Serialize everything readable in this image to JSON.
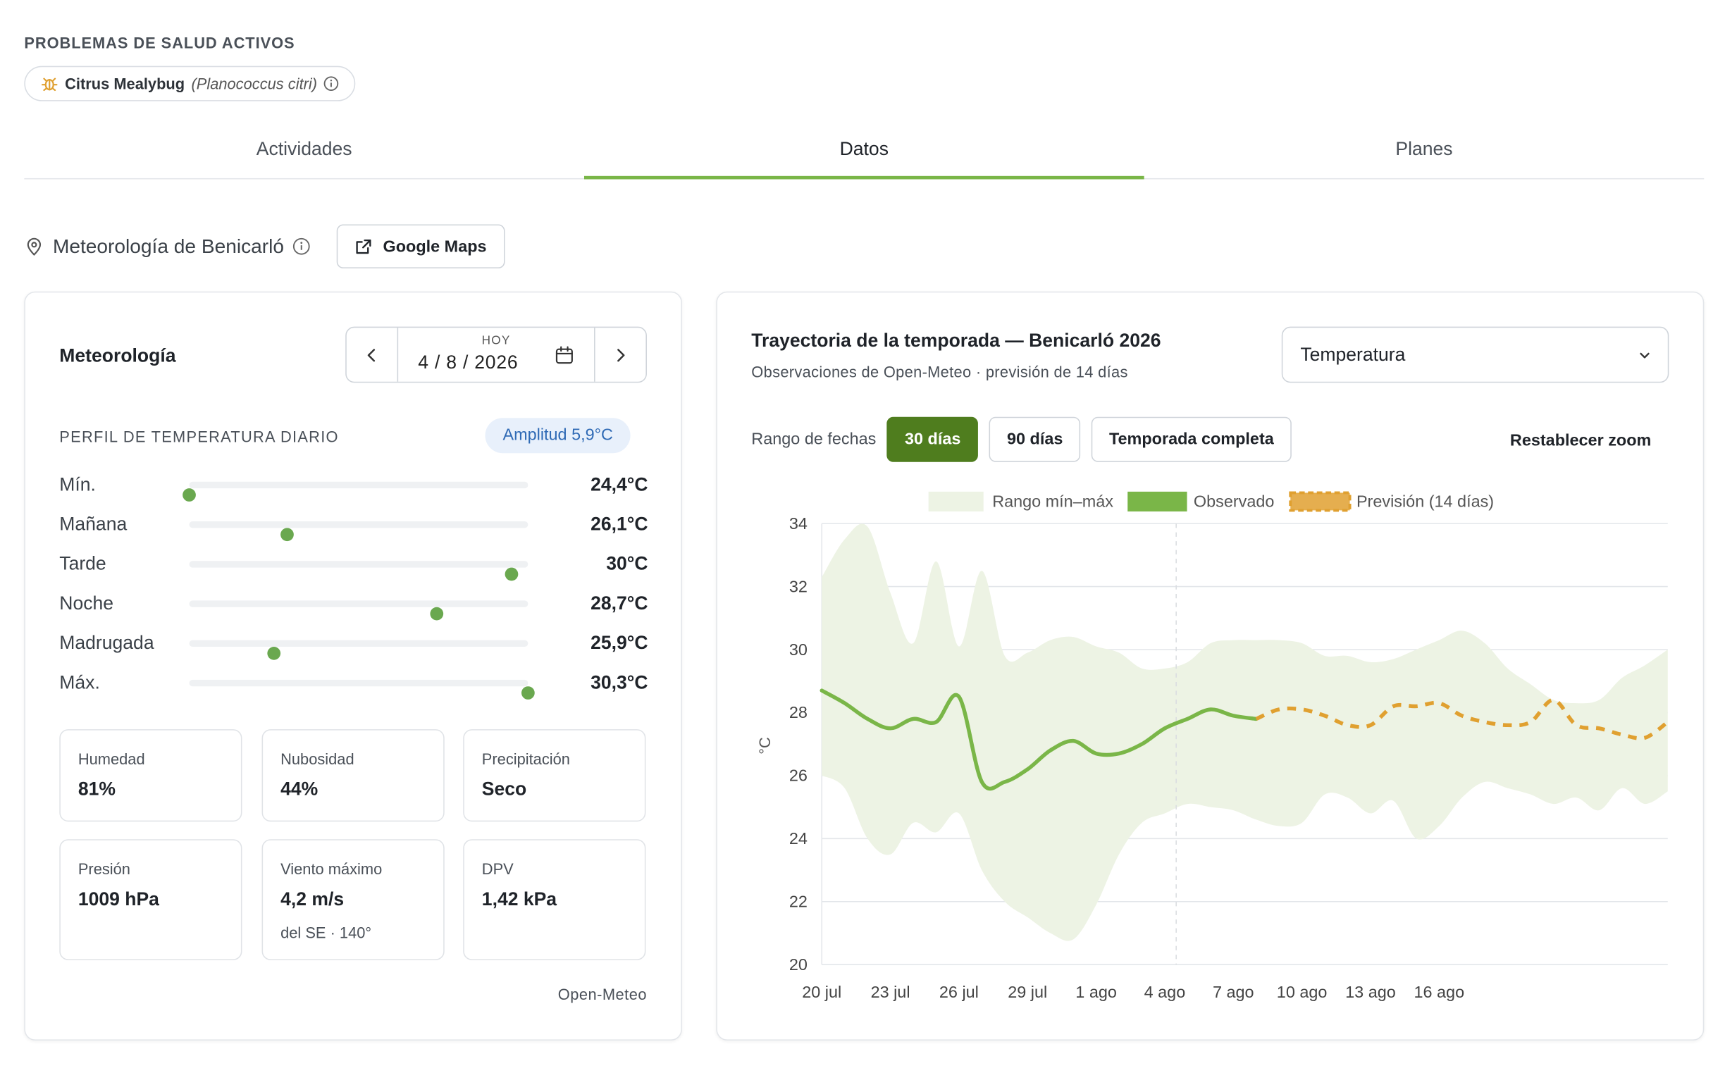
{
  "section_label": "PROBLEMAS DE SALUD ACTIVOS",
  "health_chip": {
    "name": "Citrus Mealybug",
    "scientific": "(Planococcus citri)"
  },
  "tabs": [
    {
      "label": "Actividades",
      "active": false
    },
    {
      "label": "Datos",
      "active": true
    },
    {
      "label": "Planes",
      "active": false
    }
  ],
  "weather_location": "Meteorología de Benicarló",
  "maps_button": "Google Maps",
  "left_card": {
    "title": "Meteorología",
    "date_caption": "HOY",
    "date": "4 / 8 / 2026",
    "profile_label": "PERFIL DE TEMPERATURA DIARIO",
    "amplitude": "Amplitud 5,9°C",
    "rows": [
      {
        "name": "Mín.",
        "value": "24,4°C",
        "level": 0.0
      },
      {
        "name": "Mañana",
        "value": "26,1°C",
        "level": 0.29
      },
      {
        "name": "Tarde",
        "value": "30°C",
        "level": 0.95
      },
      {
        "name": "Noche",
        "value": "28,7°C",
        "level": 0.73
      },
      {
        "name": "Madrugada",
        "value": "25,9°C",
        "level": 0.25
      },
      {
        "name": "Máx.",
        "value": "30,3°C",
        "level": 1.0
      }
    ],
    "metrics": [
      {
        "label": "Humedad",
        "value": "81%",
        "sub": ""
      },
      {
        "label": "Nubosidad",
        "value": "44%",
        "sub": ""
      },
      {
        "label": "Precipitación",
        "value": "Seco",
        "sub": ""
      },
      {
        "label": "Presión",
        "value": "1009 hPa",
        "sub": ""
      },
      {
        "label": "Viento máximo",
        "value": "4,2 m/s",
        "sub": "del SE · 140°"
      },
      {
        "label": "DPV",
        "value": "1,42 kPa",
        "sub": ""
      }
    ],
    "source": "Open-Meteo"
  },
  "right_card": {
    "title": "Trayectoria de la temporada — Benicarló 2026",
    "subtitle": "Observaciones de Open-Meteo · previsión de 14 días",
    "select_value": "Temperatura",
    "range_label": "Rango de fechas",
    "range_buttons": [
      {
        "label": "30 días",
        "active": true
      },
      {
        "label": "90 días",
        "active": false
      },
      {
        "label": "Temporada completa",
        "active": false
      }
    ],
    "reset_zoom": "Restablecer zoom"
  },
  "colors": {
    "accent": "#7ab648",
    "observed": "#7ab648",
    "forecast": "#e0a030",
    "range": "#edf3e4",
    "primary_btn": "#4f7d1e"
  },
  "chart_data": {
    "type": "line",
    "title": "",
    "xlabel": "",
    "ylabel": "°C",
    "ylim": [
      20,
      34
    ],
    "yticks": [
      20,
      22,
      24,
      26,
      28,
      30,
      32,
      34
    ],
    "xticks": [
      "20 jul",
      "23 jul",
      "26 jul",
      "29 jul",
      "1 ago",
      "4 ago",
      "7 ago",
      "10 ago",
      "13 ago",
      "16 ago"
    ],
    "x_start_label": "20 jul",
    "today_index": 15.5,
    "legend": [
      "Rango mín–máx",
      "Observado",
      "Previsión (14 días)"
    ],
    "legend_position": "top-center",
    "grid": true,
    "range_max": [
      32.3,
      33.5,
      33.9,
      31.8,
      30.2,
      32.8,
      30.1,
      32.5,
      29.8,
      29.9,
      30.3,
      30.4,
      30.1,
      29.9,
      29.4,
      29.4,
      29.6,
      30.2,
      30.3,
      30.3,
      30.3,
      30.2,
      29.8,
      29.8,
      29.6,
      29.7,
      30.0,
      30.3,
      30.6,
      30.2,
      29.4,
      28.9,
      28.4,
      28.3,
      28.4,
      29.1,
      29.5,
      30.0
    ],
    "range_min": [
      26.0,
      25.6,
      24.0,
      23.5,
      24.5,
      24.2,
      24.8,
      23.0,
      22.0,
      21.5,
      21.0,
      20.8,
      21.9,
      23.5,
      24.5,
      24.8,
      25.1,
      25.0,
      24.9,
      24.6,
      24.4,
      24.5,
      25.4,
      25.3,
      24.8,
      25.2,
      24.0,
      24.4,
      25.3,
      25.8,
      25.6,
      25.4,
      25.1,
      25.3,
      24.9,
      25.6,
      25.1,
      25.5
    ],
    "observed": [
      28.7,
      28.3,
      27.8,
      27.5,
      27.8,
      27.7,
      28.5,
      25.8,
      25.8,
      26.2,
      26.8,
      27.1,
      26.7,
      26.7,
      27.0,
      27.5,
      27.8,
      28.1,
      27.9,
      27.8
    ],
    "forecast_start_index": 19,
    "forecast": [
      27.8,
      28.1,
      28.1,
      27.9,
      27.6,
      27.6,
      28.2,
      28.2,
      28.3,
      27.9,
      27.7,
      27.6,
      27.7,
      28.4,
      27.6,
      27.5,
      27.3,
      27.2,
      27.7
    ]
  }
}
